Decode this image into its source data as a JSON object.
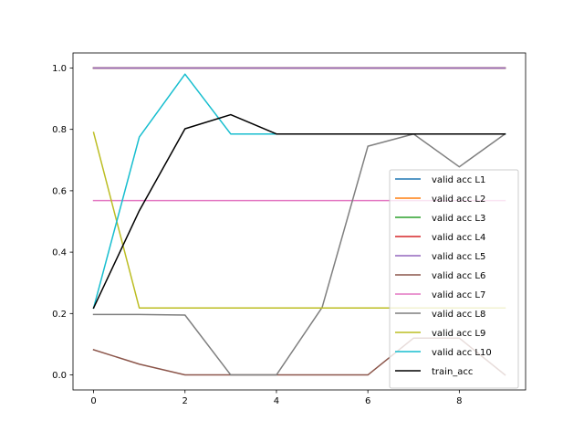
{
  "chart_data": {
    "type": "line",
    "title": "",
    "xlabel": "",
    "ylabel": "",
    "x": [
      0,
      1,
      2,
      3,
      4,
      5,
      6,
      7,
      8,
      9
    ],
    "xlim": [
      -0.45,
      9.45
    ],
    "ylim": [
      -0.049,
      1.049
    ],
    "xticks": [
      0,
      2,
      4,
      6,
      8
    ],
    "yticks": [
      0.0,
      0.2,
      0.4,
      0.6,
      0.8,
      1.0
    ],
    "xtick_labels": [
      "0",
      "2",
      "4",
      "6",
      "8"
    ],
    "ytick_labels": [
      "0.0",
      "0.2",
      "0.4",
      "0.6",
      "0.8",
      "1.0"
    ],
    "grid": false,
    "legend_position": "right",
    "series": [
      {
        "name": "valid acc L1",
        "color": "#1f77b4",
        "values": [
          1.0,
          1.0,
          1.0,
          1.0,
          1.0,
          1.0,
          1.0,
          1.0,
          1.0,
          1.0
        ]
      },
      {
        "name": "valid acc L2",
        "color": "#ff7f0e",
        "values": [
          1.0,
          1.0,
          1.0,
          1.0,
          1.0,
          1.0,
          1.0,
          1.0,
          1.0,
          1.0
        ]
      },
      {
        "name": "valid acc L3",
        "color": "#2ca02c",
        "values": [
          1.0,
          1.0,
          1.0,
          1.0,
          1.0,
          1.0,
          1.0,
          1.0,
          1.0,
          1.0
        ]
      },
      {
        "name": "valid acc L4",
        "color": "#d62728",
        "values": [
          1.0,
          1.0,
          1.0,
          1.0,
          1.0,
          1.0,
          1.0,
          1.0,
          1.0,
          1.0
        ]
      },
      {
        "name": "valid acc L5",
        "color": "#9467bd",
        "values": [
          1.0,
          1.0,
          1.0,
          1.0,
          1.0,
          1.0,
          1.0,
          1.0,
          1.0,
          1.0
        ]
      },
      {
        "name": "valid acc L6",
        "color": "#8c564b",
        "values": [
          0.082,
          0.035,
          0.0,
          0.0,
          0.0,
          0.0,
          0.0,
          0.12,
          0.12,
          0.0
        ]
      },
      {
        "name": "valid acc L7",
        "color": "#e377c2",
        "values": [
          0.568,
          0.568,
          0.568,
          0.568,
          0.568,
          0.568,
          0.568,
          0.568,
          0.568,
          0.568
        ]
      },
      {
        "name": "valid acc L8",
        "color": "#7f7f7f",
        "values": [
          0.197,
          0.197,
          0.195,
          0.0,
          0.0,
          0.22,
          0.745,
          0.785,
          0.678,
          0.785
        ]
      },
      {
        "name": "valid acc L9",
        "color": "#bcbd22",
        "values": [
          0.79,
          0.218,
          0.218,
          0.218,
          0.218,
          0.218,
          0.218,
          0.218,
          0.218,
          0.218
        ]
      },
      {
        "name": "valid acc L10",
        "color": "#17becf",
        "values": [
          0.218,
          0.775,
          0.98,
          0.785,
          0.785,
          0.785,
          0.785,
          0.785,
          0.785,
          0.785
        ]
      },
      {
        "name": "train_acc",
        "color": "#000000",
        "values": [
          0.218,
          0.535,
          0.802,
          0.848,
          0.785,
          0.785,
          0.785,
          0.785,
          0.785,
          0.785
        ]
      }
    ]
  }
}
